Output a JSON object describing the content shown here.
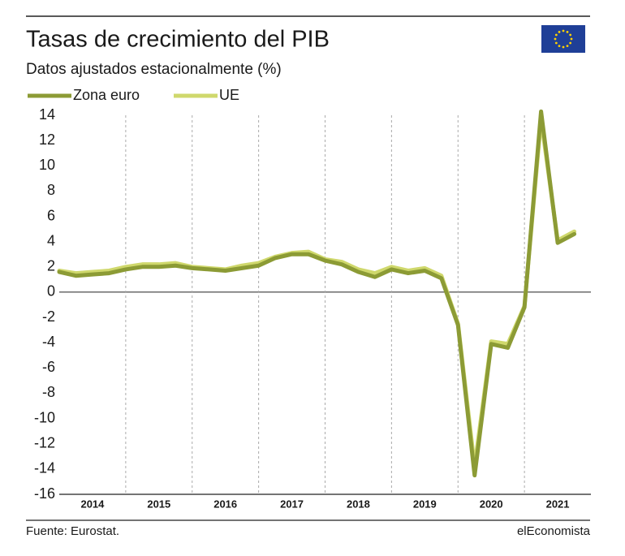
{
  "chart_data": {
    "type": "line",
    "title": "Tasas de crecimiento del PIB",
    "subtitle": "Datos ajustados estacionalmente (%)",
    "source": "Fuente: Eurostat.",
    "brand": "elEconomista",
    "x": [
      2014,
      2014.25,
      2014.5,
      2014.75,
      2015,
      2015.25,
      2015.5,
      2015.75,
      2016,
      2016.25,
      2016.5,
      2016.75,
      2017,
      2017.25,
      2017.5,
      2017.75,
      2018,
      2018.25,
      2018.5,
      2018.75,
      2019,
      2019.25,
      2019.5,
      2019.75,
      2020,
      2020.25,
      2020.5,
      2020.75,
      2021,
      2021.25,
      2021.5,
      2021.75
    ],
    "series": [
      {
        "name": "Zona euro",
        "color": "#8c9b35",
        "values": [
          1.6,
          1.3,
          1.4,
          1.5,
          1.8,
          2.0,
          2.0,
          2.1,
          1.9,
          1.8,
          1.7,
          1.9,
          2.1,
          2.7,
          3.0,
          3.0,
          2.5,
          2.2,
          1.6,
          1.2,
          1.8,
          1.5,
          1.7,
          1.1,
          -2.6,
          -14.5,
          -4.1,
          -4.4,
          -1.2,
          14.3,
          3.9,
          4.6
        ]
      },
      {
        "name": "UE",
        "color": "#cfd86c",
        "values": [
          1.7,
          1.5,
          1.6,
          1.7,
          2.0,
          2.2,
          2.2,
          2.3,
          2.0,
          1.9,
          1.8,
          2.1,
          2.3,
          2.8,
          3.1,
          3.2,
          2.6,
          2.4,
          1.8,
          1.5,
          2.0,
          1.7,
          1.9,
          1.3,
          -2.5,
          -13.8,
          -3.9,
          -4.1,
          -1.1,
          13.7,
          4.1,
          4.8
        ]
      }
    ],
    "xlim": [
      2014,
      2022
    ],
    "xticks": [
      {
        "value": 2014,
        "label": "2014"
      },
      {
        "value": 2015,
        "label": "2015"
      },
      {
        "value": 2016,
        "label": "2016"
      },
      {
        "value": 2017,
        "label": "2017"
      },
      {
        "value": 2018,
        "label": "2018"
      },
      {
        "value": 2019,
        "label": "2019"
      },
      {
        "value": 2020,
        "label": "2020"
      },
      {
        "value": 2021,
        "label": "2021"
      }
    ],
    "ylim": [
      -16,
      14
    ],
    "yticks": [
      -16,
      -14,
      -12,
      -10,
      -8,
      -6,
      -4,
      -2,
      0,
      2,
      4,
      6,
      8,
      10,
      12,
      14
    ],
    "grid": true
  }
}
